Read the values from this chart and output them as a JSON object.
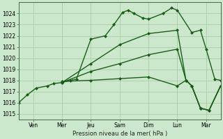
{
  "background_color": "#cce8cc",
  "grid_color": "#aaccaa",
  "line_color": "#1a5c1a",
  "xlim": [
    0,
    7
  ],
  "ylim": [
    1014.5,
    1025.0
  ],
  "yticks": [
    1015,
    1016,
    1017,
    1018,
    1019,
    1020,
    1021,
    1022,
    1023,
    1024
  ],
  "xtick_labels": [
    "Ven",
    "Mer",
    "Jeu",
    "Sam",
    "Dim",
    "Lun",
    "Mar"
  ],
  "xtick_positions": [
    0.5,
    1.5,
    2.5,
    3.5,
    4.5,
    5.5,
    6.5
  ],
  "xlabel": "Pression niveau de la mer( hPa )",
  "series": [
    {
      "x": [
        0.0,
        0.3,
        0.6,
        1.0,
        1.2,
        1.5,
        1.8,
        2.0,
        2.5,
        3.0,
        3.3,
        3.6,
        3.8,
        4.0,
        4.3,
        4.5,
        5.0,
        5.3,
        5.5,
        6.0,
        6.3,
        6.5,
        6.8,
        7.0
      ],
      "y": [
        1016.0,
        1016.7,
        1017.3,
        1017.5,
        1017.7,
        1017.8,
        1018.0,
        1018.1,
        1021.7,
        1022.0,
        1023.0,
        1024.1,
        1024.3,
        1024.0,
        1023.6,
        1023.5,
        1024.0,
        1024.5,
        1024.3,
        1022.3,
        1022.5,
        1020.8,
        1018.1,
        1018.0
      ],
      "marker": "D",
      "markersize": 2.0,
      "linewidth": 1.0
    },
    {
      "x": [
        1.5,
        2.5,
        3.5,
        4.5,
        5.5,
        5.8,
        6.0,
        6.3,
        6.6,
        7.0
      ],
      "y": [
        1017.8,
        1019.5,
        1021.2,
        1022.2,
        1022.5,
        1018.0,
        1017.5,
        1015.5,
        1015.3,
        1017.5
      ],
      "marker": "D",
      "markersize": 2.0,
      "linewidth": 1.0
    },
    {
      "x": [
        1.5,
        2.5,
        3.5,
        4.5,
        5.5,
        5.8,
        6.0,
        6.3,
        6.6,
        7.0
      ],
      "y": [
        1017.8,
        1018.8,
        1019.5,
        1020.3,
        1020.8,
        1018.0,
        1017.5,
        1015.5,
        1015.3,
        1017.5
      ],
      "marker": "D",
      "markersize": 2.0,
      "linewidth": 1.0
    },
    {
      "x": [
        1.5,
        2.5,
        3.5,
        4.5,
        5.5,
        5.8,
        6.0,
        6.3,
        6.6,
        7.0
      ],
      "y": [
        1017.9,
        1018.0,
        1018.15,
        1018.3,
        1017.5,
        1018.0,
        1017.5,
        1015.5,
        1015.3,
        1017.5
      ],
      "marker": "D",
      "markersize": 2.0,
      "linewidth": 1.0
    }
  ]
}
